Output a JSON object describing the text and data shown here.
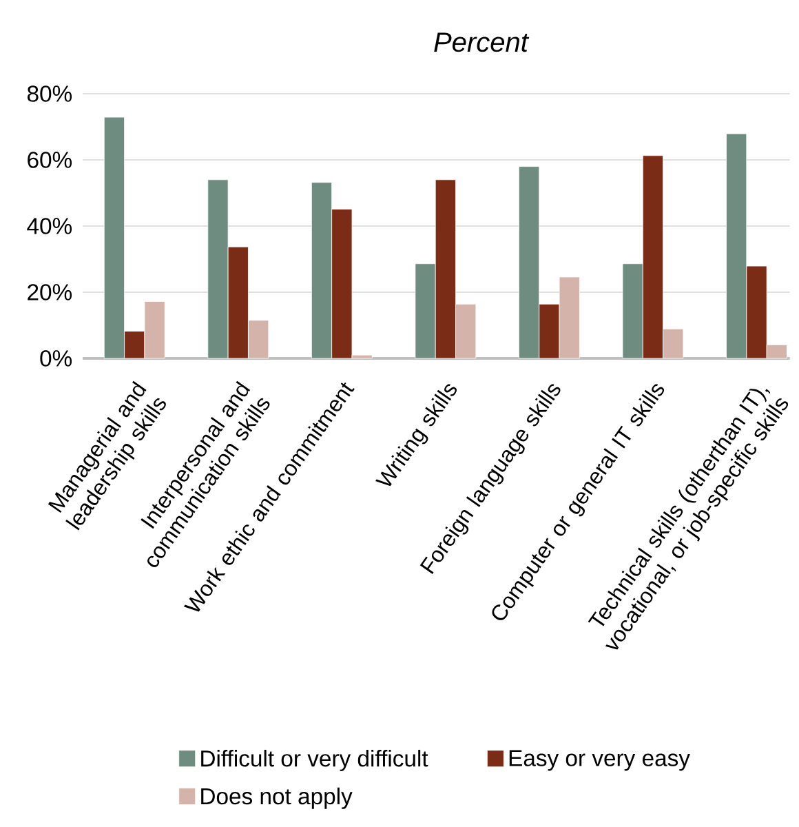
{
  "chart_data": {
    "type": "bar",
    "title": "*Percent*",
    "categories": [
      "Managerial and leadership skills",
      "Interpersonal and communication skills",
      "Work ethic and commitment",
      "Writing skills",
      "Foreign language skills",
      "Computer or general IT skills",
      "Technical skills (otherthan IT), vocational, or job-specific skills"
    ],
    "series": [
      {
        "name": "Difficult or very difficult",
        "color": "#6e8c80",
        "values": [
          72.9,
          54,
          53.2,
          28.6,
          58,
          28.6,
          67.9
        ]
      },
      {
        "name": "Easy or very easy",
        "color": "#7b2c16",
        "values": [
          8.2,
          33.7,
          45.1,
          54,
          16.4,
          61.3,
          27.9
        ]
      },
      {
        "name": "Does not apply",
        "color": "#d4b4aa",
        "values": [
          17.2,
          11.5,
          1,
          16.4,
          24.6,
          8.9,
          4.1
        ]
      }
    ],
    "ylim": [
      0,
      80
    ],
    "yticks": [
      {
        "value": 0,
        "label": "0%"
      },
      {
        "value": 20,
        "label": "20%"
      },
      {
        "value": 40,
        "label": "40%"
      },
      {
        "value": 60,
        "label": "60%"
      },
      {
        "value": 80,
        "label": "80%"
      }
    ],
    "grid": "y",
    "legend": "bottom"
  }
}
